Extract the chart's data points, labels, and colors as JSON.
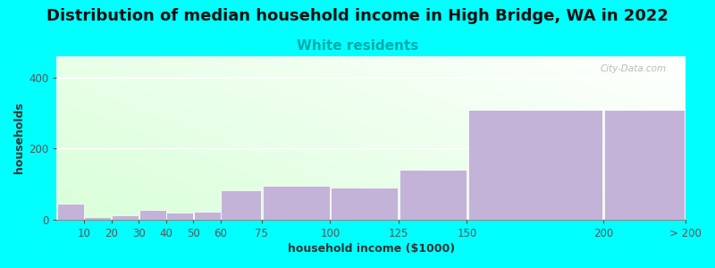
{
  "title": "Distribution of median household income in High Bridge, WA in 2022",
  "subtitle": "White residents",
  "xlabel": "household income ($1000)",
  "ylabel": "households",
  "background_color": "#00FFFF",
  "bar_color": "#C4B3D8",
  "bar_edge_color": "#ffffff",
  "categories": [
    "10",
    "20",
    "30",
    "40",
    "50",
    "60",
    "75",
    "100",
    "125",
    "150",
    "200",
    "> 200"
  ],
  "bin_edges": [
    0,
    10,
    20,
    30,
    40,
    50,
    60,
    75,
    100,
    125,
    150,
    200,
    230
  ],
  "values": [
    45,
    8,
    12,
    28,
    20,
    22,
    82,
    95,
    90,
    140,
    310,
    310
  ],
  "ylim": [
    0,
    460
  ],
  "yticks": [
    0,
    200,
    400
  ],
  "title_fontsize": 13,
  "subtitle_fontsize": 11,
  "subtitle_color": "#00AAAA",
  "axis_label_fontsize": 9,
  "tick_fontsize": 8.5,
  "watermark_text": "City-Data.com",
  "watermark_color": "#AAAAAA"
}
